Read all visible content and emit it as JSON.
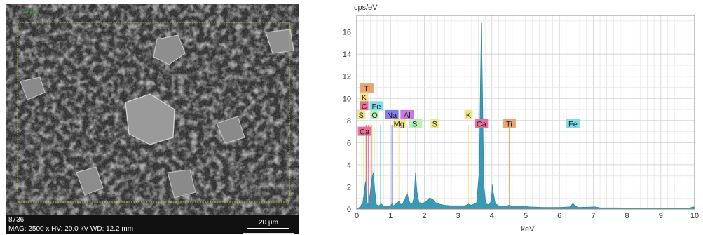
{
  "micrograph": {
    "overlay_label": "Image1",
    "sample_id": "8736",
    "parameters": "MAG: 2500 x HV: 20.0 kV WD: 12.2 mm",
    "scale_label": "20 µm",
    "colors": {
      "frame": "#e4e03c",
      "bar": "#111111",
      "text": "#ffffff"
    }
  },
  "chart_data": {
    "type": "line",
    "ylabel": "cps/eV",
    "xlabel": "keV",
    "xlim": [
      0,
      10
    ],
    "ylim": [
      0,
      17.5
    ],
    "xticks": [
      0,
      1,
      2,
      3,
      4,
      5,
      6,
      7,
      8,
      9,
      10
    ],
    "yticks": [
      0,
      2,
      4,
      6,
      8,
      10,
      12,
      14,
      16
    ],
    "grid": true,
    "series_color": "#3a9ab5",
    "spectrum_points": [
      [
        0.0,
        0
      ],
      [
        0.1,
        0.2
      ],
      [
        0.18,
        0.6
      ],
      [
        0.22,
        1.5
      ],
      [
        0.26,
        2.5
      ],
      [
        0.28,
        1.2
      ],
      [
        0.31,
        0.5
      ],
      [
        0.35,
        0.4
      ],
      [
        0.4,
        1.5
      ],
      [
        0.45,
        2.8
      ],
      [
        0.49,
        3.3
      ],
      [
        0.53,
        1.8
      ],
      [
        0.58,
        0.4
      ],
      [
        0.66,
        0.3
      ],
      [
        0.72,
        0.5
      ],
      [
        0.78,
        0.3
      ],
      [
        0.9,
        0.25
      ],
      [
        1.0,
        0.25
      ],
      [
        1.04,
        0.5
      ],
      [
        1.08,
        0.3
      ],
      [
        1.18,
        0.5
      ],
      [
        1.25,
        0.7
      ],
      [
        1.3,
        0.4
      ],
      [
        1.36,
        0.5
      ],
      [
        1.43,
        0.9
      ],
      [
        1.49,
        1.5
      ],
      [
        1.53,
        0.9
      ],
      [
        1.6,
        0.4
      ],
      [
        1.66,
        0.6
      ],
      [
        1.7,
        1.2
      ],
      [
        1.74,
        3.3
      ],
      [
        1.78,
        1.6
      ],
      [
        1.84,
        0.6
      ],
      [
        1.95,
        0.5
      ],
      [
        2.05,
        0.7
      ],
      [
        2.15,
        1.0
      ],
      [
        2.25,
        0.9
      ],
      [
        2.32,
        0.6
      ],
      [
        2.45,
        0.45
      ],
      [
        2.6,
        0.35
      ],
      [
        2.8,
        0.3
      ],
      [
        3.0,
        0.3
      ],
      [
        3.2,
        0.3
      ],
      [
        3.31,
        0.45
      ],
      [
        3.4,
        0.35
      ],
      [
        3.55,
        0.6
      ],
      [
        3.63,
        3.5
      ],
      [
        3.66,
        11.0
      ],
      [
        3.69,
        16.8
      ],
      [
        3.72,
        11.0
      ],
      [
        3.76,
        2.2
      ],
      [
        3.82,
        0.5
      ],
      [
        3.9,
        0.4
      ],
      [
        3.96,
        0.6
      ],
      [
        4.0,
        1.5
      ],
      [
        4.01,
        2.2
      ],
      [
        4.04,
        1.5
      ],
      [
        4.1,
        0.5
      ],
      [
        4.2,
        0.3
      ],
      [
        4.4,
        0.25
      ],
      [
        4.51,
        0.35
      ],
      [
        4.6,
        0.25
      ],
      [
        4.93,
        0.3
      ],
      [
        5.1,
        0.2
      ],
      [
        5.5,
        0.15
      ],
      [
        6.0,
        0.15
      ],
      [
        6.3,
        0.2
      ],
      [
        6.4,
        0.5
      ],
      [
        6.46,
        0.3
      ],
      [
        6.55,
        0.15
      ],
      [
        7.06,
        0.2
      ],
      [
        7.2,
        0.12
      ],
      [
        8.0,
        0.1
      ],
      [
        9.0,
        0.08
      ],
      [
        9.85,
        0.1
      ],
      [
        9.97,
        0.2
      ],
      [
        10.0,
        0.1
      ]
    ],
    "element_lines": [
      {
        "el": "Ti",
        "kev": 0.45,
        "color": "#e8a574"
      },
      {
        "el": "K",
        "kev": 0.26,
        "color": "#f0e68c"
      },
      {
        "el": "C",
        "kev": 0.28,
        "color": "#e8709a"
      },
      {
        "el": "Fe",
        "kev": 0.7,
        "color": "#7fdfe8"
      },
      {
        "el": "S",
        "kev": 0.15,
        "color": "#f0e68c"
      },
      {
        "el": "O",
        "kev": 0.52,
        "color": "#b8f0b8"
      },
      {
        "el": "Na",
        "kev": 1.04,
        "color": "#7e7ef0"
      },
      {
        "el": "Al",
        "kev": 1.49,
        "color": "#c87ae0"
      },
      {
        "el": "Ca",
        "kev": 0.34,
        "color": "#e8709a"
      },
      {
        "el": "Mg",
        "kev": 1.25,
        "color": "#f0e68c"
      },
      {
        "el": "Si",
        "kev": 1.74,
        "color": "#b8f0b8"
      },
      {
        "el": "S",
        "kev": 2.31,
        "color": "#f0e68c"
      },
      {
        "el": "K",
        "kev": 3.31,
        "color": "#f0e68c"
      },
      {
        "el": "Ca",
        "kev": 3.69,
        "color": "#e8709a"
      },
      {
        "el": "Ti",
        "kev": 4.51,
        "color": "#e8a574"
      },
      {
        "el": "Fe",
        "kev": 6.4,
        "color": "#7fdfe8"
      }
    ],
    "element_labels": [
      {
        "el": "Ti",
        "kev": 0.3,
        "y": 10.9,
        "color": "#e8a574"
      },
      {
        "el": "K",
        "kev": 0.22,
        "y": 10.1,
        "color": "#f0e68c"
      },
      {
        "el": "C",
        "kev": 0.22,
        "y": 9.3,
        "color": "#e8709a"
      },
      {
        "el": "Fe",
        "kev": 0.58,
        "y": 9.3,
        "color": "#7fdfe8"
      },
      {
        "el": "S",
        "kev": 0.13,
        "y": 8.5,
        "color": "#f0e68c"
      },
      {
        "el": "O",
        "kev": 0.53,
        "y": 8.5,
        "color": "#b8f0b8"
      },
      {
        "el": "Na",
        "kev": 1.04,
        "y": 8.5,
        "color": "#7e7ef0"
      },
      {
        "el": "Al",
        "kev": 1.49,
        "y": 8.5,
        "color": "#c87ae0"
      },
      {
        "el": "Ca",
        "kev": 0.23,
        "y": 7.0,
        "color": "#e8709a"
      },
      {
        "el": "Mg",
        "kev": 1.25,
        "y": 7.7,
        "color": "#f0e68c"
      },
      {
        "el": "Si",
        "kev": 1.74,
        "y": 7.7,
        "color": "#b8f0b8"
      },
      {
        "el": "S",
        "kev": 2.31,
        "y": 7.7,
        "color": "#f0e68c"
      },
      {
        "el": "K",
        "kev": 3.31,
        "y": 8.5,
        "color": "#f0e68c"
      },
      {
        "el": "Ca",
        "kev": 3.69,
        "y": 7.7,
        "color": "#e8709a"
      },
      {
        "el": "Ti",
        "kev": 4.51,
        "y": 7.7,
        "color": "#e8a574"
      },
      {
        "el": "Fe",
        "kev": 6.4,
        "y": 7.7,
        "color": "#7fdfe8"
      }
    ]
  }
}
